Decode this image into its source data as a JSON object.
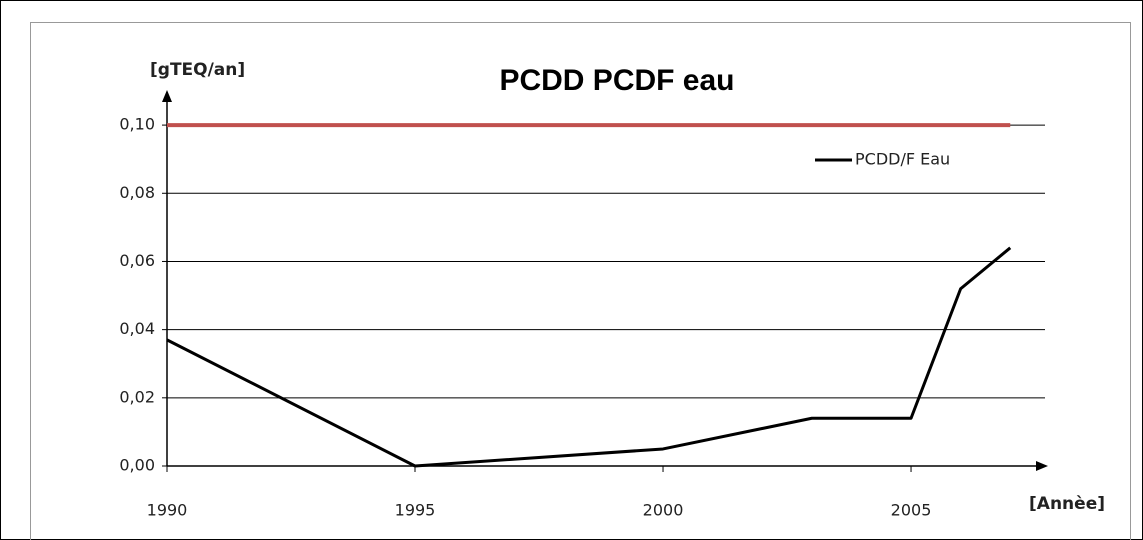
{
  "chart_data": {
    "type": "line",
    "title": "PCDD PCDF eau",
    "y_label": "[gTEQ/an]",
    "x_label": "[Annèe]",
    "x": [
      1990,
      1995,
      2000,
      2003,
      2005,
      2006,
      2007
    ],
    "series": [
      {
        "name": "PCDD/F Eau",
        "color": "#000000",
        "values": [
          0.037,
          0,
          0.005,
          0.014,
          0.014,
          0.052,
          0.064
        ]
      }
    ],
    "reference_line": {
      "value": 0.1,
      "x": [
        1990,
        2007
      ],
      "color": "#c0504d"
    },
    "xlim": [
      1990,
      2007.6
    ],
    "ylim": [
      0,
      0.11
    ],
    "xticks": [
      1990,
      1995,
      2000,
      2005
    ],
    "yticks": [
      {
        "value": 0,
        "label": "0,00"
      },
      {
        "value": 0.02,
        "label": "0,02"
      },
      {
        "value": 0.04,
        "label": "0,04"
      },
      {
        "value": 0.06,
        "label": "0,06"
      },
      {
        "value": 0.08,
        "label": "0,08"
      },
      {
        "value": 0.1,
        "label": "0,10"
      }
    ],
    "grid": true,
    "legend": "upper right"
  }
}
